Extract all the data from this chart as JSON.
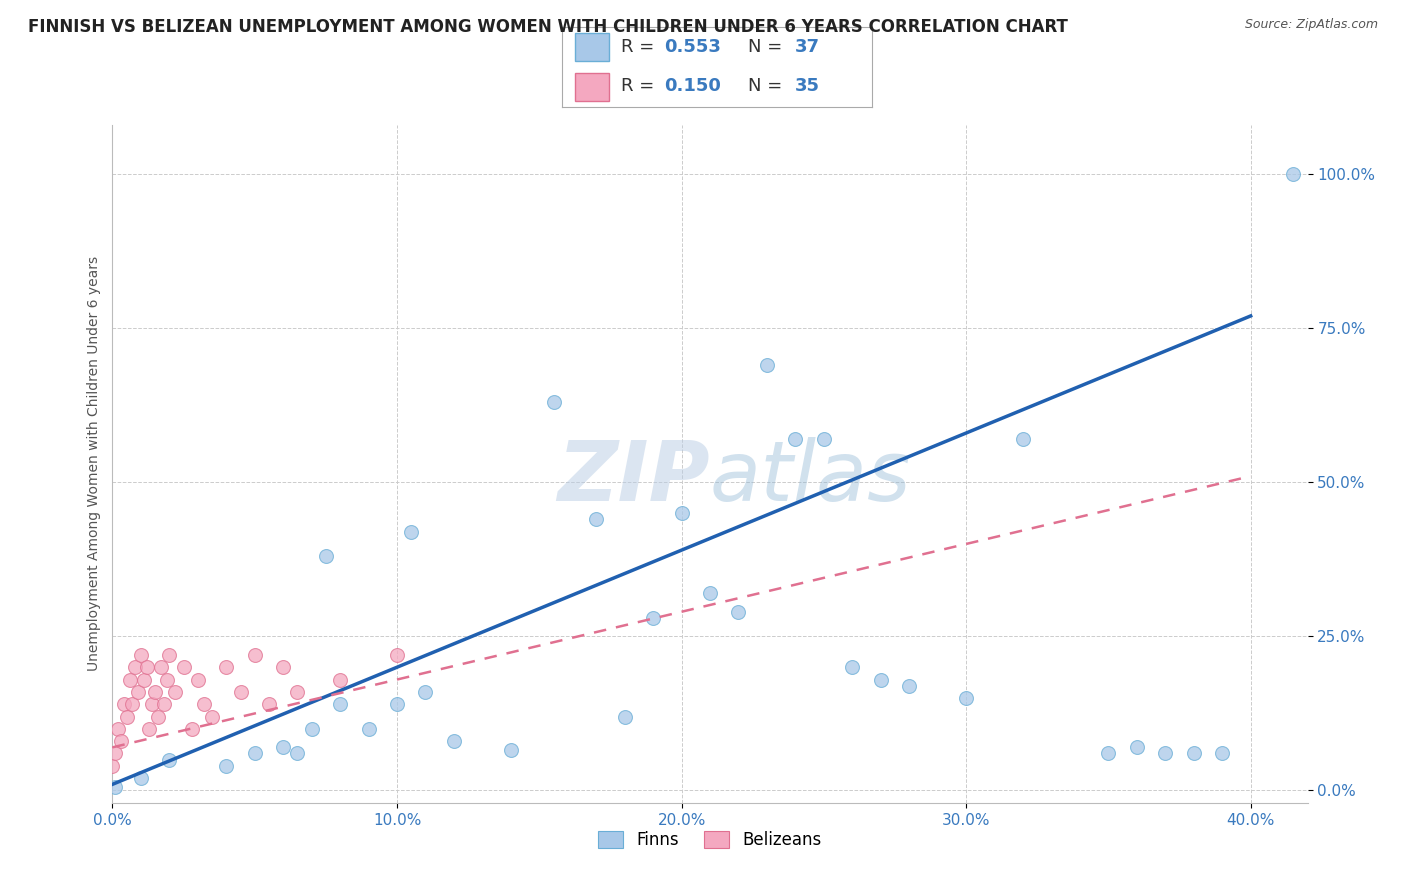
{
  "title": "FINNISH VS BELIZEAN UNEMPLOYMENT AMONG WOMEN WITH CHILDREN UNDER 6 YEARS CORRELATION CHART",
  "source": "Source: ZipAtlas.com",
  "ylabel": "Unemployment Among Women with Children Under 6 years",
  "xlim": [
    0.0,
    0.42
  ],
  "ylim": [
    -0.02,
    1.08
  ],
  "xticks": [
    0.0,
    0.1,
    0.2,
    0.3,
    0.4
  ],
  "xtick_labels": [
    "0.0%",
    "10.0%",
    "20.0%",
    "30.0%",
    "40.0%"
  ],
  "yticks": [
    0.0,
    0.25,
    0.5,
    0.75,
    1.0
  ],
  "ytick_labels": [
    "0.0%",
    "25.0%",
    "50.0%",
    "75.0%",
    "100.0%"
  ],
  "finn_color": "#a8c8e8",
  "finn_edge_color": "#6aaed6",
  "belizean_color": "#f4a8c0",
  "belizean_edge_color": "#e07090",
  "finn_line_color": "#2060b0",
  "belizean_line_color": "#e07090",
  "legend_blue": "#3a7abf",
  "tick_blue": "#3a7abf",
  "watermark_color": "#ccd8ee",
  "background_color": "#ffffff",
  "grid_color": "#cccccc",
  "finn_line_x0": 0.0,
  "finn_line_y0": 0.01,
  "finn_line_x1": 0.4,
  "finn_line_y1": 0.77,
  "bel_line_x0": 0.0,
  "bel_line_y0": 0.07,
  "bel_line_x1": 0.4,
  "bel_line_y1": 0.51,
  "finn_scatter_x": [
    0.001,
    0.01,
    0.02,
    0.04,
    0.05,
    0.06,
    0.065,
    0.07,
    0.075,
    0.08,
    0.09,
    0.1,
    0.105,
    0.11,
    0.12,
    0.14,
    0.155,
    0.17,
    0.18,
    0.19,
    0.2,
    0.21,
    0.22,
    0.23,
    0.24,
    0.25,
    0.26,
    0.27,
    0.28,
    0.3,
    0.32,
    0.35,
    0.36,
    0.37,
    0.38,
    0.39,
    0.415
  ],
  "finn_scatter_y": [
    0.005,
    0.02,
    0.05,
    0.04,
    0.06,
    0.07,
    0.06,
    0.1,
    0.38,
    0.14,
    0.1,
    0.14,
    0.42,
    0.16,
    0.08,
    0.065,
    0.63,
    0.44,
    0.12,
    0.28,
    0.45,
    0.32,
    0.29,
    0.69,
    0.57,
    0.57,
    0.2,
    0.18,
    0.17,
    0.15,
    0.57,
    0.06,
    0.07,
    0.06,
    0.06,
    0.06,
    1.0
  ],
  "bel_scatter_x": [
    0.0,
    0.001,
    0.002,
    0.003,
    0.004,
    0.005,
    0.006,
    0.007,
    0.008,
    0.009,
    0.01,
    0.011,
    0.012,
    0.013,
    0.014,
    0.015,
    0.016,
    0.017,
    0.018,
    0.019,
    0.02,
    0.022,
    0.025,
    0.028,
    0.03,
    0.032,
    0.035,
    0.04,
    0.045,
    0.05,
    0.055,
    0.06,
    0.065,
    0.08,
    0.1
  ],
  "bel_scatter_y": [
    0.04,
    0.06,
    0.1,
    0.08,
    0.14,
    0.12,
    0.18,
    0.14,
    0.2,
    0.16,
    0.22,
    0.18,
    0.2,
    0.1,
    0.14,
    0.16,
    0.12,
    0.2,
    0.14,
    0.18,
    0.22,
    0.16,
    0.2,
    0.1,
    0.18,
    0.14,
    0.12,
    0.2,
    0.16,
    0.22,
    0.14,
    0.2,
    0.16,
    0.18,
    0.22
  ],
  "title_fontsize": 12,
  "axis_label_fontsize": 10,
  "tick_fontsize": 11,
  "legend_fontsize": 13,
  "marker_size": 100
}
